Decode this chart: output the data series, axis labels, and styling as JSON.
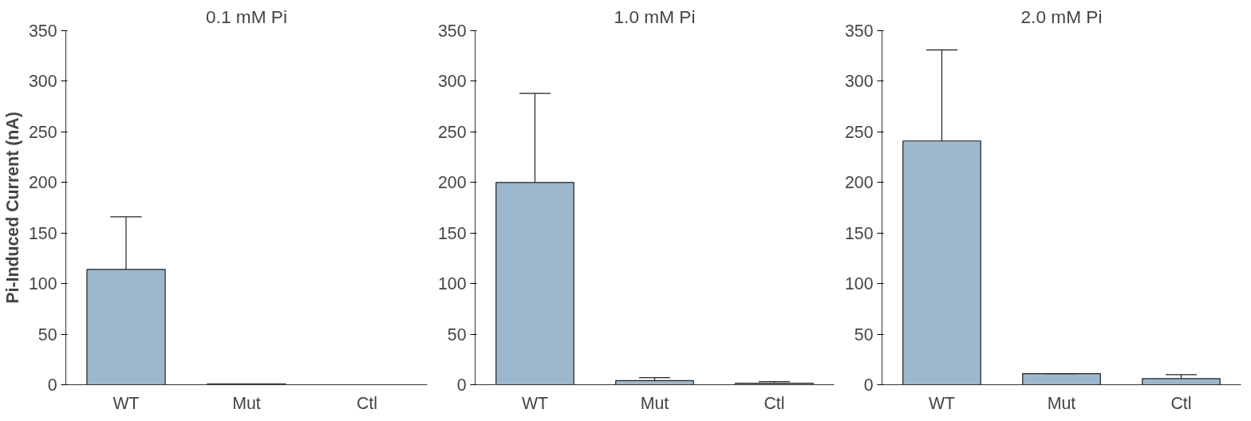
{
  "chart_data": [
    {
      "type": "bar",
      "title": "0.1 mM Pi",
      "ylabel": "Pi-Induced Current (nA)",
      "categories": [
        "WT",
        "Mut",
        "Ctl"
      ],
      "values": [
        114,
        1,
        0
      ],
      "errors": [
        [
          114,
          166
        ],
        null,
        null
      ],
      "color": "#9db8cc",
      "ylim": [
        0,
        350
      ],
      "yticks": [
        0,
        50,
        100,
        150,
        200,
        250,
        300,
        350
      ],
      "grid": false
    },
    {
      "type": "bar",
      "title": "1.0 mM Pi",
      "categories": [
        "WT",
        "Mut",
        "Ctl"
      ],
      "values": [
        200,
        4,
        1.5
      ],
      "errors": [
        [
          200,
          288
        ],
        [
          4,
          7
        ],
        [
          1.5,
          3
        ]
      ],
      "color": "#9db8cc",
      "ylim": [
        0,
        350
      ],
      "yticks": [
        0,
        50,
        100,
        150,
        200,
        250,
        300,
        350
      ],
      "grid": false
    },
    {
      "type": "bar",
      "title": "2.0 mM Pi",
      "categories": [
        "WT",
        "Mut",
        "Ctl"
      ],
      "values": [
        241,
        11,
        6
      ],
      "errors": [
        [
          241,
          331
        ],
        [
          11,
          11
        ],
        [
          6,
          10
        ]
      ],
      "color": "#9db8cc",
      "ylim": [
        0,
        350
      ],
      "yticks": [
        0,
        50,
        100,
        150,
        200,
        250,
        300,
        350
      ],
      "grid": false
    }
  ]
}
